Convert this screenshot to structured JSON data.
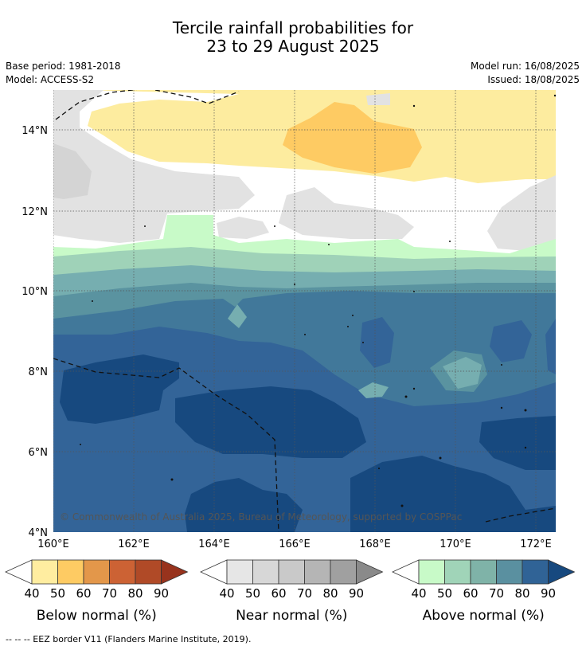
{
  "title_line1": "Tercile rainfall probabilities for",
  "title_line2": "23 to 29 August 2025",
  "base_period": "Base period: 1981-2018",
  "model": "Model: ACCESS-S2",
  "model_run": "Model run: 16/08/2025",
  "issued": "Issued: 18/08/2025",
  "copyright": "© Commonwealth of Australia 2025, Bureau of Meteorology, supported by COSPPac",
  "lat_labels": [
    "14°N",
    "12°N",
    "10°N",
    "8°N",
    "6°N",
    "4°N"
  ],
  "lon_labels": [
    "160°E",
    "162°E",
    "164°E",
    "166°E",
    "168°E",
    "170°E",
    "172°E"
  ],
  "colorbars": [
    {
      "label": "Below normal (%)",
      "ticks": [
        "40",
        "50",
        "60",
        "70",
        "80",
        "90"
      ],
      "colors": [
        "#ffeda0",
        "#fecb63",
        "#e3974a",
        "#cc6234",
        "#b04a27",
        "#98331d"
      ]
    },
    {
      "label": "Near normal (%)",
      "ticks": [
        "40",
        "50",
        "60",
        "70",
        "80",
        "90"
      ],
      "colors": [
        "#e6e6e6",
        "#d7d7d7",
        "#c9c9c9",
        "#b5b5b5",
        "#a0a0a0",
        "#8a8a8a"
      ]
    },
    {
      "label": "Above normal (%)",
      "ticks": [
        "40",
        "50",
        "60",
        "70",
        "80",
        "90"
      ],
      "colors": [
        "#c8fac8",
        "#a0d4b8",
        "#7fb3a8",
        "#5a90a0",
        "#306396",
        "#17497f"
      ]
    }
  ],
  "footnote": "--  --  -- EEZ border V11 (Flanders Marine Institute, 2019).",
  "colors": {
    "below_50": "#fcecA0",
    "below_60": "#fecb63",
    "near_40": "#e2e2e2",
    "near_50": "#d6d6d6",
    "above_40": "#c8fac8",
    "above_50": "#9fd2b8",
    "above_60": "#76aeb0",
    "above_70": "#5a93a0",
    "above_80": "#41789a",
    "above_85": "#336498",
    "above_90": "#17497f"
  }
}
